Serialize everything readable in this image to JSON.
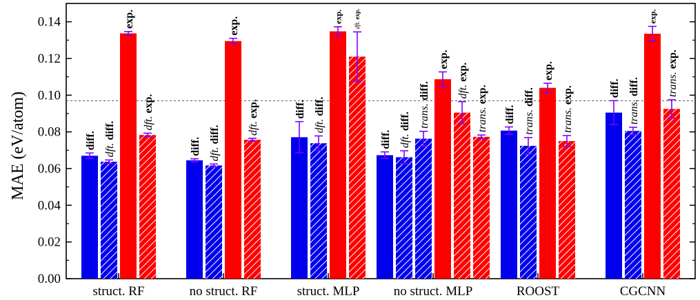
{
  "chart_data": {
    "type": "bar",
    "ylabel": "MAE (eV/atom)",
    "xlabel": "",
    "ylim": [
      0,
      0.15
    ],
    "yticks": [
      "0.00",
      "0.02",
      "0.04",
      "0.06",
      "0.08",
      "0.10",
      "0.12",
      "0.14"
    ],
    "reference_line": 0.097,
    "grid": false,
    "colors": {
      "blue": "#0000ee",
      "red": "#ff0000",
      "error_bar": "#7f00ff"
    },
    "groups": [
      {
        "category": "struct. RF",
        "bars": [
          {
            "value": 0.067,
            "error": 0.0015,
            "color": "blue",
            "hatch": false,
            "label": "diff.",
            "label_italic": "",
            "label_size": "large"
          },
          {
            "value": 0.0637,
            "error": 0.001,
            "color": "blue",
            "hatch": true,
            "label": "diff.",
            "label_italic": "dft.",
            "label_size": "large"
          },
          {
            "value": 0.1337,
            "error": 0.001,
            "color": "red",
            "hatch": false,
            "label": "exp.",
            "label_italic": "",
            "label_size": "large"
          },
          {
            "value": 0.0783,
            "error": 0.001,
            "color": "red",
            "hatch": true,
            "label": "exp.",
            "label_italic": "dft.",
            "label_size": "large"
          }
        ]
      },
      {
        "category": "no struct. RF",
        "bars": [
          {
            "value": 0.0645,
            "error": 0.0008,
            "color": "blue",
            "hatch": false,
            "label": "diff.",
            "label_italic": "",
            "label_size": "large"
          },
          {
            "value": 0.0617,
            "error": 0.0008,
            "color": "blue",
            "hatch": true,
            "label": "diff.",
            "label_italic": "dft.",
            "label_size": "large"
          },
          {
            "value": 0.1295,
            "error": 0.0015,
            "color": "red",
            "hatch": false,
            "label": "exp.",
            "label_italic": "",
            "label_size": "large"
          },
          {
            "value": 0.0757,
            "error": 0.0008,
            "color": "red",
            "hatch": true,
            "label": "exp.",
            "label_italic": "dft.",
            "label_size": "large"
          }
        ]
      },
      {
        "category": "struct. MLP",
        "bars": [
          {
            "value": 0.0771,
            "error": 0.0085,
            "color": "blue",
            "hatch": false,
            "label": "diff.",
            "label_italic": "",
            "label_size": "large"
          },
          {
            "value": 0.0738,
            "error": 0.004,
            "color": "blue",
            "hatch": true,
            "label": "diff.",
            "label_italic": "dft.",
            "label_size": "large"
          },
          {
            "value": 0.1348,
            "error": 0.0025,
            "color": "red",
            "hatch": false,
            "label": "exp.",
            "label_italic": "",
            "label_size": "small"
          },
          {
            "value": 0.121,
            "error": 0.0135,
            "color": "red",
            "hatch": true,
            "label": "exp.",
            "label_italic": "dft.",
            "label_size": "tiny"
          }
        ]
      },
      {
        "category": "no struct. MLP",
        "bars": [
          {
            "value": 0.0673,
            "error": 0.0018,
            "color": "blue",
            "hatch": false,
            "label": "diff.",
            "label_italic": "",
            "label_size": "large"
          },
          {
            "value": 0.0662,
            "error": 0.0035,
            "color": "blue",
            "hatch": true,
            "label": "diff.",
            "label_italic": "dft.",
            "label_size": "large"
          },
          {
            "value": 0.0763,
            "error": 0.004,
            "color": "blue",
            "hatch": true,
            "label": "diff.",
            "label_italic": "trans.",
            "label_size": "large"
          },
          {
            "value": 0.1087,
            "error": 0.004,
            "color": "red",
            "hatch": false,
            "label": "exp.",
            "label_italic": "",
            "label_size": "large"
          },
          {
            "value": 0.0905,
            "error": 0.006,
            "color": "red",
            "hatch": true,
            "label": "exp.",
            "label_italic": "dft.",
            "label_size": "large"
          },
          {
            "value": 0.0773,
            "error": 0.001,
            "color": "red",
            "hatch": true,
            "label": "exp.",
            "label_italic": "trans.",
            "label_size": "large"
          }
        ]
      },
      {
        "category": "ROOST",
        "bars": [
          {
            "value": 0.0807,
            "error": 0.002,
            "color": "blue",
            "hatch": false,
            "label": "diff.",
            "label_italic": "",
            "label_size": "large"
          },
          {
            "value": 0.0724,
            "error": 0.0045,
            "color": "blue",
            "hatch": true,
            "label": "diff.",
            "label_italic": "trans.",
            "label_size": "large"
          },
          {
            "value": 0.104,
            "error": 0.0025,
            "color": "red",
            "hatch": false,
            "label": "exp.",
            "label_italic": "",
            "label_size": "large"
          },
          {
            "value": 0.075,
            "error": 0.003,
            "color": "red",
            "hatch": true,
            "label": "exp.",
            "label_italic": "trans.",
            "label_size": "large"
          }
        ]
      },
      {
        "category": "CGCNN",
        "bars": [
          {
            "value": 0.0905,
            "error": 0.0065,
            "color": "blue",
            "hatch": false,
            "label": "diff.",
            "label_italic": "",
            "label_size": "large"
          },
          {
            "value": 0.0805,
            "error": 0.002,
            "color": "blue",
            "hatch": true,
            "label": "diff.",
            "label_italic": "trans.",
            "label_size": "large"
          },
          {
            "value": 0.1335,
            "error": 0.004,
            "color": "red",
            "hatch": false,
            "label": "exp.",
            "label_italic": "",
            "label_size": "small"
          },
          {
            "value": 0.0925,
            "error": 0.005,
            "color": "red",
            "hatch": true,
            "label": "exp.",
            "label_italic": "trans.",
            "label_size": "large"
          }
        ]
      }
    ]
  }
}
